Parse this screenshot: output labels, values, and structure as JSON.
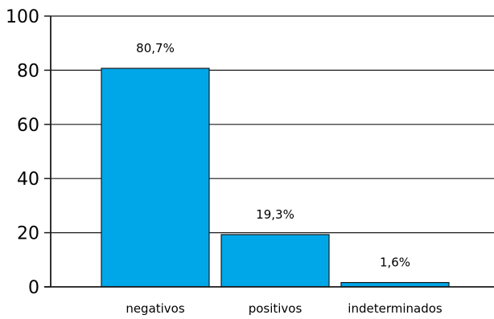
{
  "chart_data": {
    "type": "bar",
    "categories": [
      "negativos",
      "positivos",
      "indeterminados"
    ],
    "values": [
      80.7,
      19.3,
      1.6
    ],
    "data_labels": [
      "80,7%",
      "19,3%",
      "1,6%"
    ],
    "yticks": [
      "0",
      "20",
      "40",
      "60",
      "80",
      "100"
    ],
    "ylim": [
      0,
      100
    ],
    "grid": true,
    "bar_color": "#00a7e8",
    "bar_stroke": "#1a1a1a"
  }
}
